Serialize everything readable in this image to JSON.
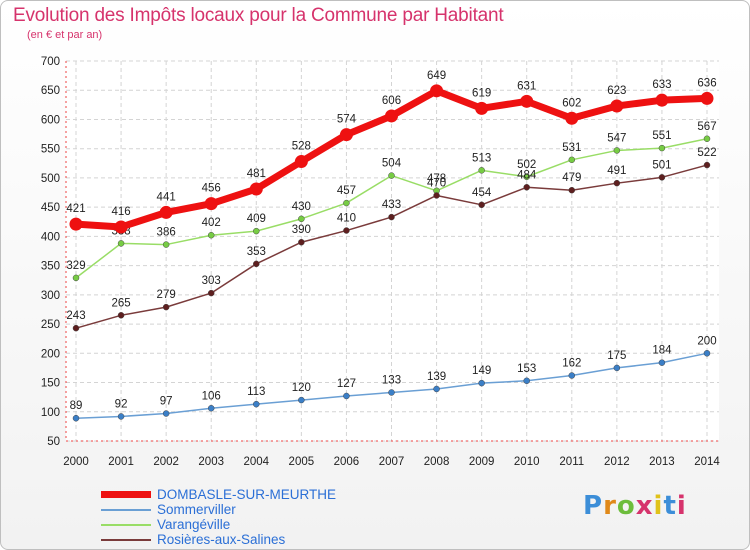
{
  "header": {
    "title": "Evolution des Impôts locaux pour la Commune par Habitant",
    "subtitle": "(en € et par an)"
  },
  "logo": {
    "text": "Proxiti",
    "colors": [
      "#3c8ed8",
      "#e0891a",
      "#6dbd3c",
      "#d6336c",
      "#e0c21a",
      "#3c8ed8",
      "#d6336c"
    ]
  },
  "chart_data": {
    "type": "line",
    "x": [
      "2000",
      "2001",
      "2002",
      "2003",
      "2004",
      "2005",
      "2006",
      "2007",
      "2008",
      "2009",
      "2010",
      "2011",
      "2012",
      "2013",
      "2014"
    ],
    "ylim": [
      50,
      700
    ],
    "yticks": [
      50,
      100,
      150,
      200,
      250,
      300,
      350,
      400,
      450,
      500,
      550,
      600,
      650,
      700
    ],
    "grid": true,
    "legend_position": "bottom-left",
    "series": [
      {
        "name": "DOMBASLE-SUR-MEURTHE",
        "values": [
          421,
          416,
          441,
          456,
          481,
          528,
          574,
          606,
          649,
          619,
          631,
          602,
          623,
          633,
          636
        ],
        "color": "#ee1111",
        "highlight": true
      },
      {
        "name": "Sommerviller",
        "values": [
          89,
          92,
          97,
          106,
          113,
          120,
          127,
          133,
          139,
          149,
          153,
          162,
          175,
          184,
          200
        ],
        "color": "#6a9fd4",
        "marker": "#3b7fc7"
      },
      {
        "name": "Varangéville",
        "values": [
          329,
          388,
          386,
          402,
          409,
          430,
          457,
          504,
          478,
          513,
          502,
          531,
          547,
          551,
          567
        ],
        "color": "#99dd66",
        "marker": "#77cc44"
      },
      {
        "name": "Rosières-aux-Salines",
        "values": [
          243,
          265,
          279,
          303,
          353,
          390,
          410,
          433,
          470,
          454,
          484,
          479,
          491,
          501,
          522
        ],
        "color": "#7a3b3b",
        "marker": "#5e1f1f"
      }
    ]
  }
}
